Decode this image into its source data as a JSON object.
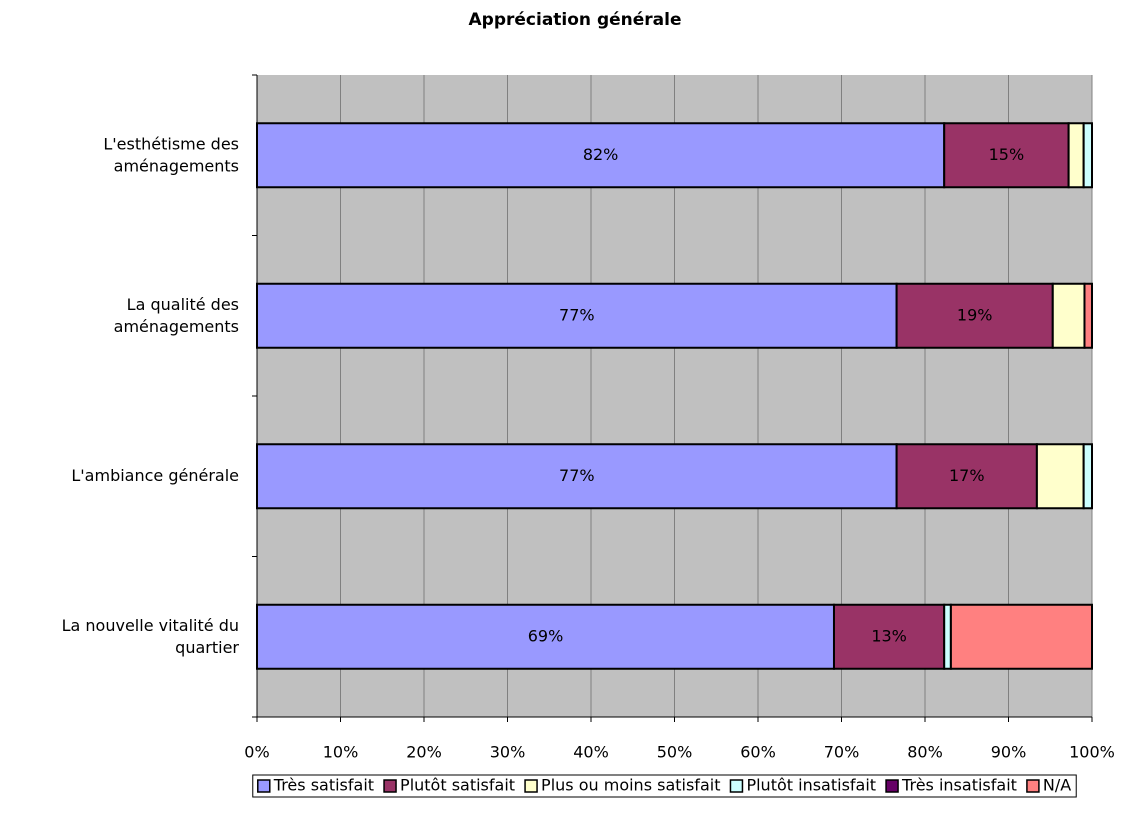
{
  "chart_data": {
    "type": "bar",
    "orientation": "horizontal",
    "stacked": true,
    "title": "Appréciation générale",
    "categories": [
      "L'esthétisme des aménagements",
      "La qualité des aménagements",
      "L'ambiance générale",
      "La nouvelle vitalité du quartier"
    ],
    "series": [
      {
        "name": "Très satisfait",
        "color": "#9999ff",
        "values": [
          82.3,
          76.6,
          76.6,
          69.1
        ],
        "value_labels": [
          "82%",
          "77%",
          "77%",
          "69%"
        ]
      },
      {
        "name": "Plutôt satisfait",
        "color": "#993366",
        "values": [
          14.9,
          18.7,
          16.8,
          13.2
        ],
        "value_labels": [
          "15%",
          "19%",
          "17%",
          "13%"
        ]
      },
      {
        "name": "Plus ou moins satisfait",
        "color": "#ffffcc",
        "values": [
          1.8,
          3.8,
          5.6,
          0
        ]
      },
      {
        "name": "Plutôt insatisfait",
        "color": "#ccffff",
        "values": [
          1.0,
          0,
          1.0,
          0.8
        ]
      },
      {
        "name": "Très insatisfait",
        "color": "#660066",
        "values": [
          0,
          0,
          0,
          0
        ]
      },
      {
        "name": "N/A",
        "color": "#ff8080",
        "values": [
          0,
          0.9,
          0,
          16.9
        ]
      }
    ],
    "xlim": [
      0,
      100
    ],
    "xticks": [
      {
        "value": 0,
        "label": "0%"
      },
      {
        "value": 10,
        "label": "10%"
      },
      {
        "value": 20,
        "label": "20%"
      },
      {
        "value": 30,
        "label": "30%"
      },
      {
        "value": 40,
        "label": "40%"
      },
      {
        "value": 50,
        "label": "50%"
      },
      {
        "value": 60,
        "label": "60%"
      },
      {
        "value": 70,
        "label": "70%"
      },
      {
        "value": 80,
        "label": "80%"
      },
      {
        "value": 90,
        "label": "90%"
      },
      {
        "value": 100,
        "label": "100%"
      }
    ],
    "grid": true,
    "legend": "bottom"
  }
}
